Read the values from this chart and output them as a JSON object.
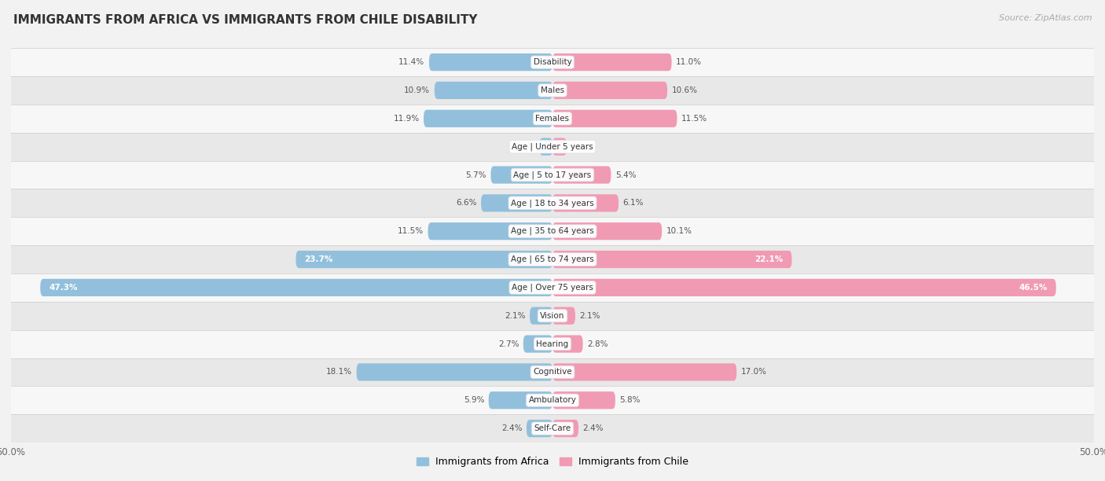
{
  "title": "IMMIGRANTS FROM AFRICA VS IMMIGRANTS FROM CHILE DISABILITY",
  "source": "Source: ZipAtlas.com",
  "categories": [
    "Disability",
    "Males",
    "Females",
    "Age | Under 5 years",
    "Age | 5 to 17 years",
    "Age | 18 to 34 years",
    "Age | 35 to 64 years",
    "Age | 65 to 74 years",
    "Age | Over 75 years",
    "Vision",
    "Hearing",
    "Cognitive",
    "Ambulatory",
    "Self-Care"
  ],
  "africa_values": [
    11.4,
    10.9,
    11.9,
    1.2,
    5.7,
    6.6,
    11.5,
    23.7,
    47.3,
    2.1,
    2.7,
    18.1,
    5.9,
    2.4
  ],
  "chile_values": [
    11.0,
    10.6,
    11.5,
    1.3,
    5.4,
    6.1,
    10.1,
    22.1,
    46.5,
    2.1,
    2.8,
    17.0,
    5.8,
    2.4
  ],
  "africa_color": "#92C0DC",
  "chile_color": "#F19AB4",
  "africa_color_dark": "#5B9EC9",
  "chile_color_dark": "#E8638E",
  "axis_limit": 50.0,
  "background_color": "#f2f2f2",
  "row_bg_even": "#f7f7f7",
  "row_bg_odd": "#e8e8e8",
  "label_bg": "#ffffff"
}
